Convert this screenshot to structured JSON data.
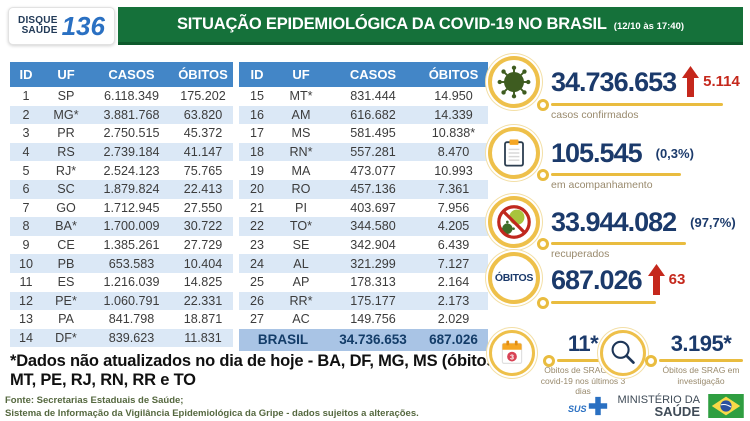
{
  "header": {
    "logo_line1": "DISQUE",
    "logo_line2": "SAÚDE",
    "logo_number": "136",
    "title": "SITUAÇÃO EPIDEMIOLÓGICA DA COVID-19 NO BRASIL",
    "timestamp": "(12/10 às 17:40)"
  },
  "chart_data": {
    "type": "table",
    "title": "SITUAÇÃO EPIDEMIOLÓGICA DA COVID-19 NO BRASIL",
    "as_of": "12/10 às 17:40",
    "columns": [
      "ID",
      "UF",
      "CASOS",
      "ÓBITOS"
    ],
    "rows": [
      [
        "1",
        "SP",
        "6.118.349",
        "175.202"
      ],
      [
        "2",
        "MG*",
        "3.881.768",
        "63.820"
      ],
      [
        "3",
        "PR",
        "2.750.515",
        "45.372"
      ],
      [
        "4",
        "RS",
        "2.739.184",
        "41.147"
      ],
      [
        "5",
        "RJ*",
        "2.524.123",
        "75.765"
      ],
      [
        "6",
        "SC",
        "1.879.824",
        "22.413"
      ],
      [
        "7",
        "GO",
        "1.712.945",
        "27.550"
      ],
      [
        "8",
        "BA*",
        "1.700.009",
        "30.722"
      ],
      [
        "9",
        "CE",
        "1.385.261",
        "27.729"
      ],
      [
        "10",
        "PB",
        "653.583",
        "10.404"
      ],
      [
        "11",
        "ES",
        "1.216.039",
        "14.825"
      ],
      [
        "12",
        "PE*",
        "1.060.791",
        "22.331"
      ],
      [
        "13",
        "PA",
        "841.798",
        "18.871"
      ],
      [
        "14",
        "DF*",
        "839.623",
        "11.831"
      ],
      [
        "15",
        "MT*",
        "831.444",
        "14.950"
      ],
      [
        "16",
        "AM",
        "616.682",
        "14.339"
      ],
      [
        "17",
        "MS",
        "581.495",
        "10.838*"
      ],
      [
        "18",
        "RN*",
        "557.281",
        "8.470"
      ],
      [
        "19",
        "MA",
        "473.077",
        "10.993"
      ],
      [
        "20",
        "RO",
        "457.136",
        "7.361"
      ],
      [
        "21",
        "PI",
        "403.697",
        "7.956"
      ],
      [
        "22",
        "TO*",
        "344.580",
        "4.205"
      ],
      [
        "23",
        "SE",
        "342.904",
        "6.439"
      ],
      [
        "24",
        "AL",
        "321.299",
        "7.127"
      ],
      [
        "25",
        "AP",
        "178.313",
        "2.164"
      ],
      [
        "26",
        "RR*",
        "175.177",
        "2.173"
      ],
      [
        "27",
        "AC",
        "149.756",
        "2.029"
      ]
    ],
    "total": {
      "label": "BRASIL",
      "casos": "34.736.653",
      "obitos": "687.026"
    },
    "summary": {
      "casos_confirmados": 34736653,
      "novos_casos": 5114,
      "em_acompanhamento": 105545,
      "em_acompanhamento_pct": "0,3%",
      "recuperados": 33944082,
      "recuperados_pct": "97,7%",
      "obitos": 687026,
      "novos_obitos": 63,
      "obitos_srag_covid_ultimos_3_dias": 11,
      "obitos_srag_em_investigacao": 3195
    }
  },
  "stats": {
    "confirmed": {
      "value": "34.736.653",
      "delta": "5.114",
      "label": "casos confirmados"
    },
    "monitoring": {
      "value": "105.545",
      "pct": "(0,3%)",
      "label": "em acompanhamento"
    },
    "recovered": {
      "value": "33.944.082",
      "pct": "(97,7%)",
      "label": "recuperados"
    },
    "deaths": {
      "badge": "ÓBITOS",
      "value": "687.026",
      "delta": "63"
    },
    "srag_recent": {
      "value": "11*",
      "label": "Óbitos de SRAG por covid-19 nos últimos 3 dias"
    },
    "srag_investigation": {
      "value": "3.195*",
      "label": "Óbitos de SRAG em investigação"
    }
  },
  "footnote": {
    "line1": "*Dados não atualizados no dia de hoje - BA, DF, MG, MS (óbitos),",
    "line2": "MT, PE, RJ, RN, RR e TO"
  },
  "source": {
    "line1": "Fonte: Secretarias Estaduais de Saúde;",
    "line2": "Sistema de Informação da Vigilância Epidemiológica da Gripe - dados sujeitos a alterações."
  },
  "ministry": {
    "sus_label": "SUS",
    "line1": "MINISTÉRIO DA",
    "line2": "SAÚDE"
  },
  "colors": {
    "banner_green": "#15713a",
    "table_header_blue": "#4386c7",
    "row_alt_blue": "#dbe8f6",
    "total_row_blue": "#a9c4e5",
    "navy": "#1b3a6b",
    "accent_yellow": "#e9bc3f",
    "alert_red": "#c5281c"
  }
}
